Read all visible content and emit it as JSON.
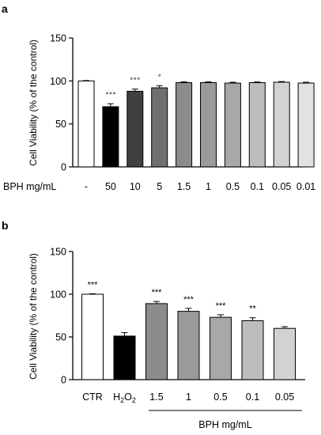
{
  "chart_data": [
    {
      "type": "bar",
      "panel": "a",
      "ylabel": "Cell Viability (% of the control)",
      "ylim": [
        0,
        150
      ],
      "yticks": [
        0,
        50,
        100,
        150
      ],
      "row_label": "BPH mg/mL",
      "categories": [
        "-",
        "50",
        "10",
        "5",
        "1.5",
        "1",
        "0.5",
        "0.1",
        "0.05",
        "0.01"
      ],
      "values": [
        100,
        70,
        88,
        92,
        98,
        98,
        97.5,
        98,
        98.5,
        97.5
      ],
      "errors": [
        0.5,
        3.5,
        2.5,
        2.5,
        1,
        1,
        1,
        0.8,
        0.8,
        1
      ],
      "significance": [
        "",
        "°°°",
        "°°°",
        "°",
        "",
        "",
        "",
        "",
        "",
        ""
      ],
      "colors": [
        "#ffffff",
        "#000000",
        "#404040",
        "#707070",
        "#8c8c8c",
        "#9a9a9a",
        "#a8a8a8",
        "#bdbdbd",
        "#d2d2d2",
        "#e2e2e2"
      ]
    },
    {
      "type": "bar",
      "panel": "b",
      "ylabel": "Cell Viability (% of the control)",
      "ylim": [
        0,
        150
      ],
      "yticks": [
        0,
        50,
        100,
        150
      ],
      "group_label": "BPH mg/mL",
      "categories": [
        "CTR",
        "H2O2",
        "1.5",
        "1",
        "0.5",
        "0.1",
        "0.05"
      ],
      "values": [
        100,
        51,
        89,
        80,
        73,
        69,
        60
      ],
      "errors": [
        0.5,
        4,
        2.5,
        3.5,
        3,
        3.5,
        2
      ],
      "significance": [
        "***",
        "",
        "***",
        "***",
        "***",
        "**",
        ""
      ],
      "colors": [
        "#ffffff",
        "#000000",
        "#8c8c8c",
        "#9a9a9a",
        "#a8a8a8",
        "#bdbdbd",
        "#d2d2d2"
      ]
    }
  ]
}
